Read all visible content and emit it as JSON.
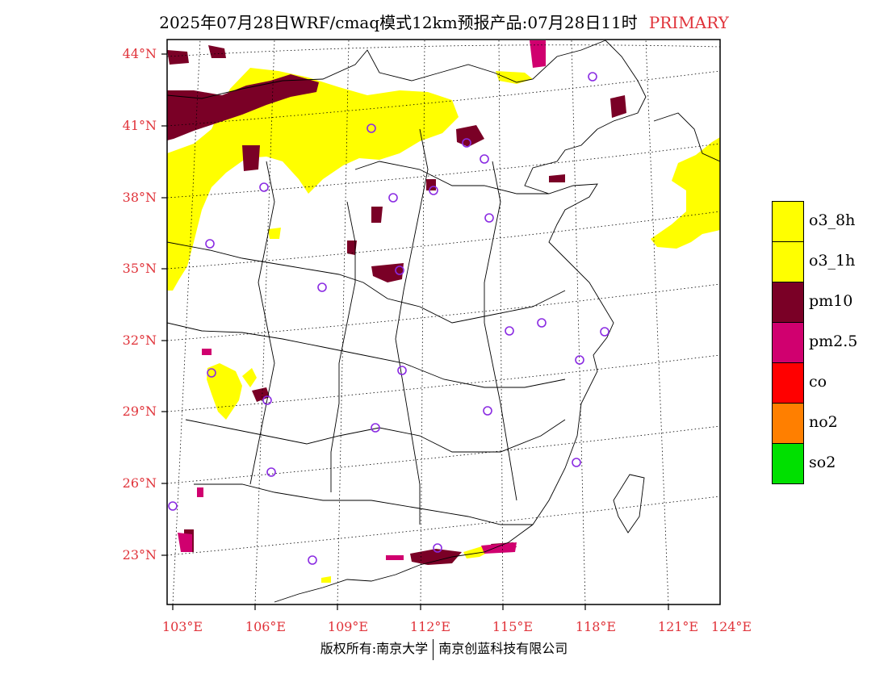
{
  "title": {
    "main": "2025年07月28日WRF/cmaq模式12km预报产品:07月28日11时",
    "tag": "PRIMARY",
    "tag_color": "#e0333a"
  },
  "copyright": {
    "left": "版权所有:南京大学",
    "right": "南京创蓝科技有限公司"
  },
  "map": {
    "lon_labels": [
      "103°E",
      "106°E",
      "109°E",
      "112°E",
      "115°E",
      "118°E",
      "121°E",
      "124°E"
    ],
    "lat_labels": [
      "44°N",
      "41°N",
      "38°N",
      "35°N",
      "32°N",
      "29°N",
      "26°N",
      "23°N"
    ],
    "axis_label_color": "#e0333a"
  },
  "legend": {
    "items": [
      {
        "label": "o3_8h",
        "color": "#ffff00"
      },
      {
        "label": "o3_1h",
        "color": "#ffff00"
      },
      {
        "label": "pm10",
        "color": "#7a0026"
      },
      {
        "label": "pm2.5",
        "color": "#d0006f"
      },
      {
        "label": "co",
        "color": "#ff0000"
      },
      {
        "label": "no2",
        "color": "#ff7f00"
      },
      {
        "label": "so2",
        "color": "#00e000"
      }
    ]
  },
  "colors": {
    "o3": "#ffff00",
    "pm10": "#7a0026",
    "pm25": "#d0006f",
    "station_marker": "#8a2be2"
  }
}
